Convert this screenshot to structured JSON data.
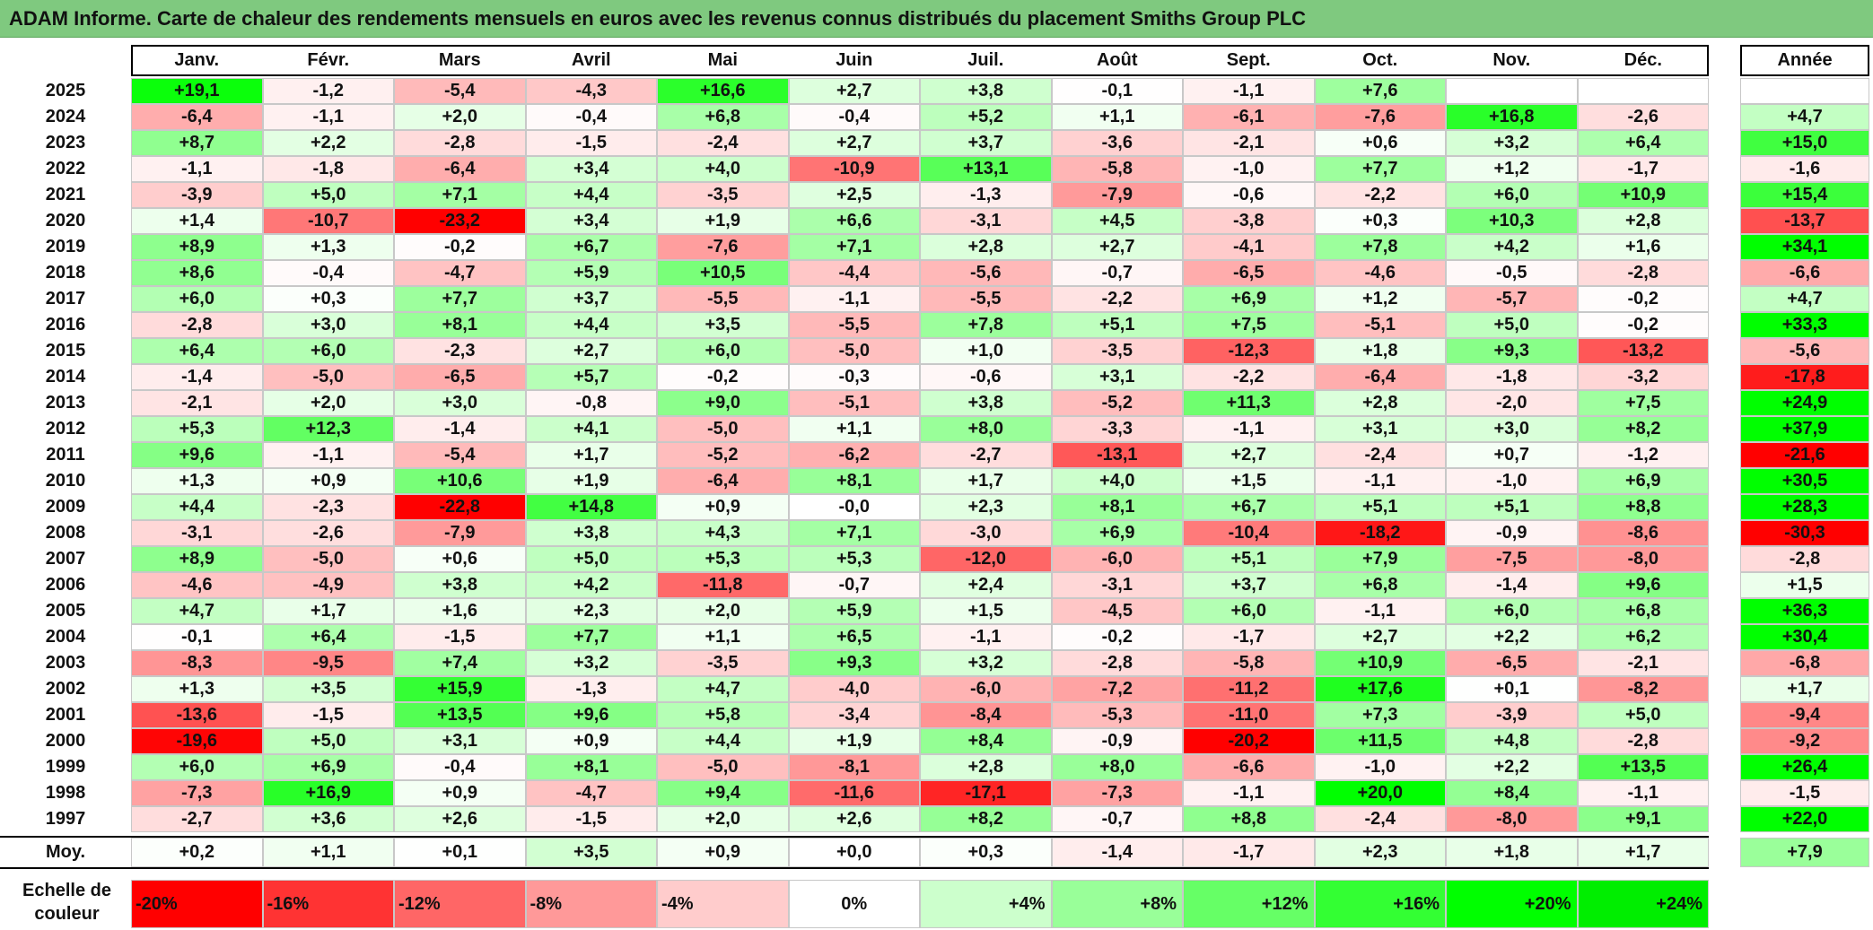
{
  "title": "ADAM Informe. Carte de chaleur des rendements mensuels en euros avec les revenus connus distribués du placement Smiths Group PLC",
  "chart_data": {
    "type": "heatmap",
    "title": "ADAM Informe. Carte de chaleur des rendements mensuels en euros avec les revenus connus distribués du placement Smiths Group PLC",
    "columns": [
      "Janv.",
      "Févr.",
      "Mars",
      "Avril",
      "Mai",
      "Juin",
      "Juil.",
      "Août",
      "Sept.",
      "Oct.",
      "Nov.",
      "Déc."
    ],
    "year_column_label": "Année",
    "rows": [
      {
        "year": "2025",
        "values": [
          "+19,1",
          "-1,2",
          "-5,4",
          "-4,3",
          "+16,6",
          "+2,7",
          "+3,8",
          "-0,1",
          "-1,1",
          "+7,6",
          "",
          ""
        ],
        "annual": ""
      },
      {
        "year": "2024",
        "values": [
          "-6,4",
          "-1,1",
          "+2,0",
          "-0,4",
          "+6,8",
          "-0,4",
          "+5,2",
          "+1,1",
          "-6,1",
          "-7,6",
          "+16,8",
          "-2,6"
        ],
        "annual": "+4,7"
      },
      {
        "year": "2023",
        "values": [
          "+8,7",
          "+2,2",
          "-2,8",
          "-1,5",
          "-2,4",
          "+2,7",
          "+3,7",
          "-3,6",
          "-2,1",
          "+0,6",
          "+3,2",
          "+6,4"
        ],
        "annual": "+15,0"
      },
      {
        "year": "2022",
        "values": [
          "-1,1",
          "-1,8",
          "-6,4",
          "+3,4",
          "+4,0",
          "-10,9",
          "+13,1",
          "-5,8",
          "-1,0",
          "+7,7",
          "+1,2",
          "-1,7"
        ],
        "annual": "-1,6"
      },
      {
        "year": "2021",
        "values": [
          "-3,9",
          "+5,0",
          "+7,1",
          "+4,4",
          "-3,5",
          "+2,5",
          "-1,3",
          "-7,9",
          "-0,6",
          "-2,2",
          "+6,0",
          "+10,9"
        ],
        "annual": "+15,4"
      },
      {
        "year": "2020",
        "values": [
          "+1,4",
          "-10,7",
          "-23,2",
          "+3,4",
          "+1,9",
          "+6,6",
          "-3,1",
          "+4,5",
          "-3,8",
          "+0,3",
          "+10,3",
          "+2,8"
        ],
        "annual": "-13,7"
      },
      {
        "year": "2019",
        "values": [
          "+8,9",
          "+1,3",
          "-0,2",
          "+6,7",
          "-7,6",
          "+7,1",
          "+2,8",
          "+2,7",
          "-4,1",
          "+7,8",
          "+4,2",
          "+1,6"
        ],
        "annual": "+34,1"
      },
      {
        "year": "2018",
        "values": [
          "+8,6",
          "-0,4",
          "-4,7",
          "+5,9",
          "+10,5",
          "-4,4",
          "-5,6",
          "-0,7",
          "-6,5",
          "-4,6",
          "-0,5",
          "-2,8"
        ],
        "annual": "-6,6"
      },
      {
        "year": "2017",
        "values": [
          "+6,0",
          "+0,3",
          "+7,7",
          "+3,7",
          "-5,5",
          "-1,1",
          "-5,5",
          "-2,2",
          "+6,9",
          "+1,2",
          "-5,7",
          "-0,2"
        ],
        "annual": "+4,7"
      },
      {
        "year": "2016",
        "values": [
          "-2,8",
          "+3,0",
          "+8,1",
          "+4,4",
          "+3,5",
          "-5,5",
          "+7,8",
          "+5,1",
          "+7,5",
          "-5,1",
          "+5,0",
          "-0,2"
        ],
        "annual": "+33,3"
      },
      {
        "year": "2015",
        "values": [
          "+6,4",
          "+6,0",
          "-2,3",
          "+2,7",
          "+6,0",
          "-5,0",
          "+1,0",
          "-3,5",
          "-12,3",
          "+1,8",
          "+9,3",
          "-13,2"
        ],
        "annual": "-5,6"
      },
      {
        "year": "2014",
        "values": [
          "-1,4",
          "-5,0",
          "-6,5",
          "+5,7",
          "-0,2",
          "-0,3",
          "-0,6",
          "+3,1",
          "-2,2",
          "-6,4",
          "-1,8",
          "-3,2"
        ],
        "annual": "-17,8"
      },
      {
        "year": "2013",
        "values": [
          "-2,1",
          "+2,0",
          "+3,0",
          "-0,8",
          "+9,0",
          "-5,1",
          "+3,8",
          "-5,2",
          "+11,3",
          "+2,8",
          "-2,0",
          "+7,5"
        ],
        "annual": "+24,9"
      },
      {
        "year": "2012",
        "values": [
          "+5,3",
          "+12,3",
          "-1,4",
          "+4,1",
          "-5,0",
          "+1,1",
          "+8,0",
          "-3,3",
          "-1,1",
          "+3,1",
          "+3,0",
          "+8,2"
        ],
        "annual": "+37,9"
      },
      {
        "year": "2011",
        "values": [
          "+9,6",
          "-1,1",
          "-5,4",
          "+1,7",
          "-5,2",
          "-6,2",
          "-2,7",
          "-13,1",
          "+2,7",
          "-2,4",
          "+0,7",
          "-1,2"
        ],
        "annual": "-21,6"
      },
      {
        "year": "2010",
        "values": [
          "+1,3",
          "+0,9",
          "+10,6",
          "+1,9",
          "-6,4",
          "+8,1",
          "+1,7",
          "+4,0",
          "+1,5",
          "-1,1",
          "-1,0",
          "+6,9"
        ],
        "annual": "+30,5"
      },
      {
        "year": "2009",
        "values": [
          "+4,4",
          "-2,3",
          "-22,8",
          "+14,8",
          "+0,9",
          "-0,0",
          "+2,3",
          "+8,1",
          "+6,7",
          "+5,1",
          "+5,1",
          "+8,8"
        ],
        "annual": "+28,3"
      },
      {
        "year": "2008",
        "values": [
          "-3,1",
          "-2,6",
          "-7,9",
          "+3,8",
          "+4,3",
          "+7,1",
          "-3,0",
          "+6,9",
          "-10,4",
          "-18,2",
          "-0,9",
          "-8,6"
        ],
        "annual": "-30,3"
      },
      {
        "year": "2007",
        "values": [
          "+8,9",
          "-5,0",
          "+0,6",
          "+5,0",
          "+5,3",
          "+5,3",
          "-12,0",
          "-6,0",
          "+5,1",
          "+7,9",
          "-7,5",
          "-8,0"
        ],
        "annual": "-2,8"
      },
      {
        "year": "2006",
        "values": [
          "-4,6",
          "-4,9",
          "+3,8",
          "+4,2",
          "-11,8",
          "-0,7",
          "+2,4",
          "-3,1",
          "+3,7",
          "+6,8",
          "-1,4",
          "+9,6"
        ],
        "annual": "+1,5"
      },
      {
        "year": "2005",
        "values": [
          "+4,7",
          "+1,7",
          "+1,6",
          "+2,3",
          "+2,0",
          "+5,9",
          "+1,5",
          "-4,5",
          "+6,0",
          "-1,1",
          "+6,0",
          "+6,8"
        ],
        "annual": "+36,3"
      },
      {
        "year": "2004",
        "values": [
          "-0,1",
          "+6,4",
          "-1,5",
          "+7,7",
          "+1,1",
          "+6,5",
          "-1,1",
          "-0,2",
          "-1,7",
          "+2,7",
          "+2,2",
          "+6,2"
        ],
        "annual": "+30,4"
      },
      {
        "year": "2003",
        "values": [
          "-8,3",
          "-9,5",
          "+7,4",
          "+3,2",
          "-3,5",
          "+9,3",
          "+3,2",
          "-2,8",
          "-5,8",
          "+10,9",
          "-6,5",
          "-2,1"
        ],
        "annual": "-6,8"
      },
      {
        "year": "2002",
        "values": [
          "+1,3",
          "+3,5",
          "+15,9",
          "-1,3",
          "+4,7",
          "-4,0",
          "-6,0",
          "-7,2",
          "-11,2",
          "+17,6",
          "+0,1",
          "-8,2"
        ],
        "annual": "+1,7"
      },
      {
        "year": "2001",
        "values": [
          "-13,6",
          "-1,5",
          "+13,5",
          "+9,6",
          "+5,8",
          "-3,4",
          "-8,4",
          "-5,3",
          "-11,0",
          "+7,3",
          "-3,9",
          "+5,0"
        ],
        "annual": "-9,4"
      },
      {
        "year": "2000",
        "values": [
          "-19,6",
          "+5,0",
          "+3,1",
          "+0,9",
          "+4,4",
          "+1,9",
          "+8,4",
          "-0,9",
          "-20,2",
          "+11,5",
          "+4,8",
          "-2,8"
        ],
        "annual": "-9,2"
      },
      {
        "year": "1999",
        "values": [
          "+6,0",
          "+6,9",
          "-0,4",
          "+8,1",
          "-5,0",
          "-8,1",
          "+2,8",
          "+8,0",
          "-6,6",
          "-1,0",
          "+2,2",
          "+13,5"
        ],
        "annual": "+26,4"
      },
      {
        "year": "1998",
        "values": [
          "-7,3",
          "+16,9",
          "+0,9",
          "-4,7",
          "+9,4",
          "-11,6",
          "-17,1",
          "-7,3",
          "-1,1",
          "+20,0",
          "+8,4",
          "-1,1"
        ],
        "annual": "-1,5"
      },
      {
        "year": "1997",
        "values": [
          "-2,7",
          "+3,6",
          "+2,6",
          "-1,5",
          "+2,0",
          "+2,6",
          "+8,2",
          "-0,7",
          "+8,8",
          "-2,4",
          "-8,0",
          "+9,1"
        ],
        "annual": "+22,0"
      }
    ],
    "average_row": {
      "label": "Moy.",
      "values": [
        "+0,2",
        "+1,1",
        "+0,1",
        "+3,5",
        "+0,9",
        "+0,0",
        "+0,3",
        "-1,4",
        "-1,7",
        "+2,3",
        "+1,8",
        "+1,7"
      ],
      "annual": "+7,9"
    },
    "color_scale": {
      "label": "Echelle de couleur",
      "stops": [
        {
          "label": "-20%",
          "value": -20,
          "color": "#ff0000"
        },
        {
          "label": "-16%",
          "value": -16,
          "color": "#ff3333"
        },
        {
          "label": "-12%",
          "value": -12,
          "color": "#ff6666"
        },
        {
          "label": "-8%",
          "value": -8,
          "color": "#ff9999"
        },
        {
          "label": "-4%",
          "value": -4,
          "color": "#ffcccc"
        },
        {
          "label": "0%",
          "value": 0,
          "color": "#ffffff"
        },
        {
          "label": "+4%",
          "value": 4,
          "color": "#ccffcc"
        },
        {
          "label": "+8%",
          "value": 8,
          "color": "#99ff99"
        },
        {
          "label": "+12%",
          "value": 12,
          "color": "#66ff66"
        },
        {
          "label": "+16%",
          "value": 16,
          "color": "#33ff33"
        },
        {
          "label": "+20%",
          "value": 20,
          "color": "#00ff00"
        },
        {
          "label": "+24%",
          "value": 24,
          "color": "#00ee00"
        }
      ]
    }
  }
}
